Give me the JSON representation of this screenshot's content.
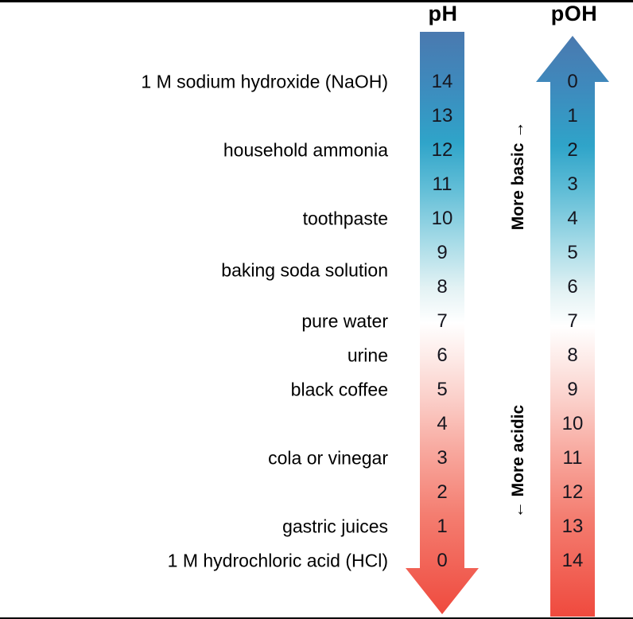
{
  "headers": {
    "ph": "pH",
    "poh": "pOH"
  },
  "scale": {
    "ph_values": [
      "14",
      "13",
      "12",
      "11",
      "10",
      "9",
      "8",
      "7",
      "6",
      "5",
      "4",
      "3",
      "2",
      "1",
      "0"
    ],
    "poh_values": [
      "0",
      "1",
      "2",
      "3",
      "4",
      "5",
      "6",
      "7",
      "8",
      "9",
      "10",
      "11",
      "12",
      "13",
      "14"
    ]
  },
  "substances": [
    {
      "label": "1 M sodium hydroxide (NaOH)",
      "ph": 14
    },
    {
      "label": "household ammonia",
      "ph": 12
    },
    {
      "label": "toothpaste",
      "ph": 10
    },
    {
      "label": "baking soda solution",
      "ph": 8.5
    },
    {
      "label": "pure water",
      "ph": 7
    },
    {
      "label": "urine",
      "ph": 6
    },
    {
      "label": "black coffee",
      "ph": 5
    },
    {
      "label": "cola or vinegar",
      "ph": 3
    },
    {
      "label": "gastric juices",
      "ph": 1
    },
    {
      "label": "1 M hydrochloric acid (HCl)",
      "ph": 0
    }
  ],
  "annotations": {
    "more_basic": "More basic →",
    "more_acidic": "← More acidic"
  },
  "colors": {
    "basic_top": "#4a79af",
    "teal_mid": "#2fa4c9",
    "neutral_middle": "#ffffff",
    "acidic_bottom": "#ef4a3e",
    "number_text": "#16161f"
  }
}
